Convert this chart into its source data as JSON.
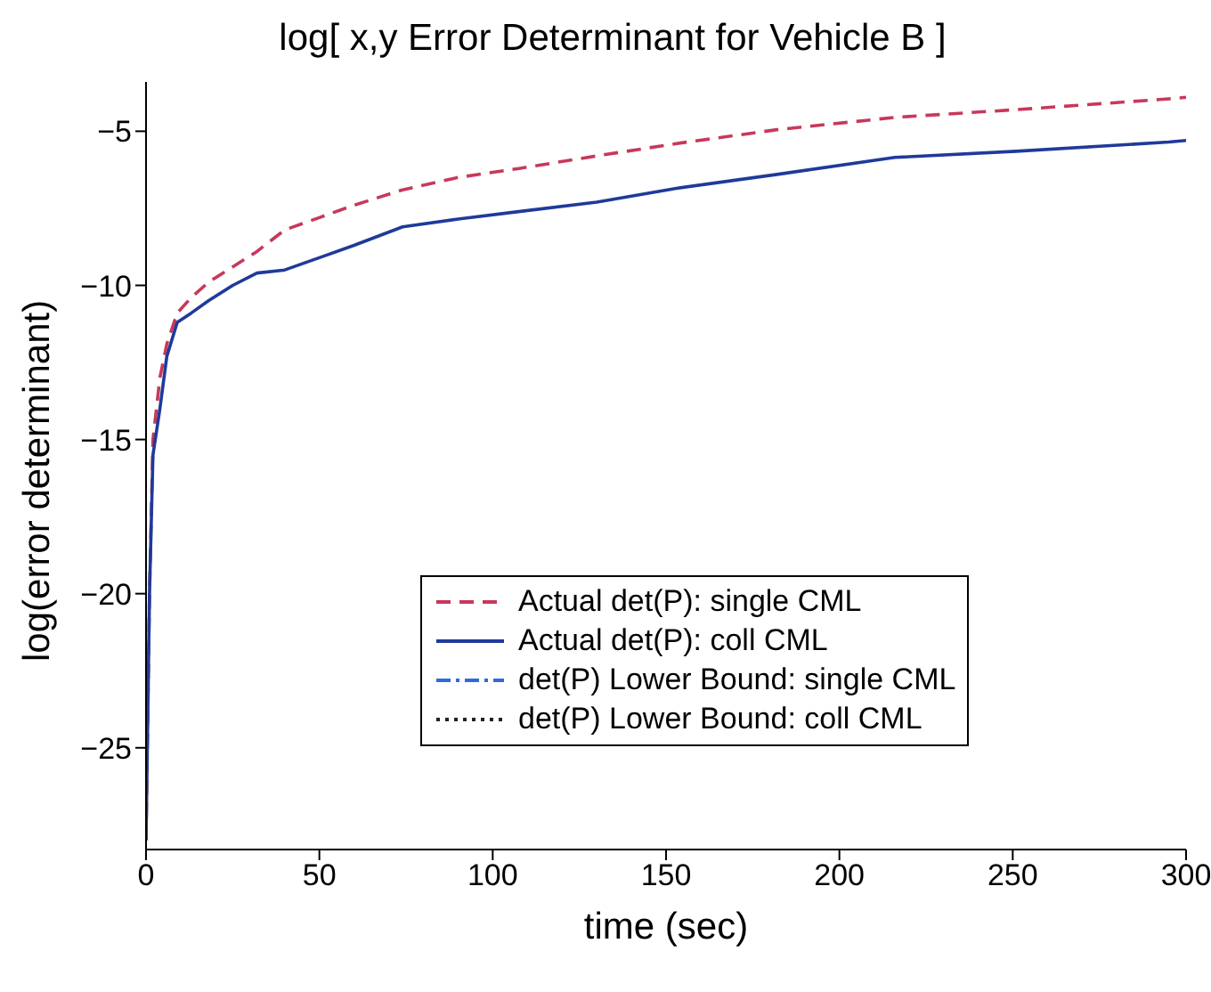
{
  "chart_data": {
    "type": "line",
    "title": "log[ x,y Error Determinant for Vehicle B ]",
    "xlabel": "time (sec)",
    "ylabel": "log(error determinant)",
    "xlim": [
      0,
      300
    ],
    "xticks": [
      0,
      50,
      100,
      150,
      200,
      250,
      300
    ],
    "ylim": [
      -28.3,
      -3.4
    ],
    "yticks": [
      -25,
      -20,
      -15,
      -10,
      -5
    ],
    "grid": false,
    "legend": "right",
    "series": [
      {
        "name": "Actual det(P): single CML",
        "color": "#c8385a",
        "line_style": "dashed",
        "x": [
          0,
          1,
          2,
          4,
          6,
          9,
          13,
          18,
          25,
          32,
          40,
          50,
          60,
          74,
          90,
          108,
          130,
          153,
          182,
          216,
          251,
          295,
          300
        ],
        "values": [
          -28,
          -20,
          -15,
          -13,
          -11.9,
          -10.9,
          -10.4,
          -9.9,
          -9.4,
          -8.9,
          -8.2,
          -7.8,
          -7.4,
          -6.9,
          -6.5,
          -6.2,
          -5.8,
          -5.4,
          -4.95,
          -4.55,
          -4.3,
          -3.95,
          -3.9
        ]
      },
      {
        "name": "Actual det(P): coll CML",
        "color": "#1f3a9a",
        "line_style": "solid",
        "x": [
          0,
          1,
          2,
          4,
          6,
          9,
          13,
          18,
          25,
          32,
          40,
          50,
          60,
          74,
          90,
          108,
          130,
          153,
          182,
          216,
          251,
          295,
          300
        ],
        "values": [
          -28,
          -20,
          -15.5,
          -14,
          -12.3,
          -11.2,
          -10.9,
          -10.5,
          -10,
          -9.6,
          -9.5,
          -9.1,
          -8.7,
          -8.1,
          -7.85,
          -7.6,
          -7.3,
          -6.85,
          -6.4,
          -5.85,
          -5.65,
          -5.35,
          -5.3
        ]
      },
      {
        "name": "det(P) Lower Bound: single CML",
        "color": "#2f6bd8",
        "line_style": "dashdot"
      },
      {
        "name": "det(P) Lower Bound: coll CML",
        "color": "#222222",
        "line_style": "dotted"
      }
    ]
  }
}
